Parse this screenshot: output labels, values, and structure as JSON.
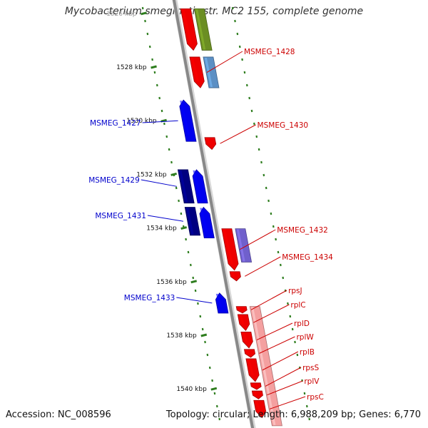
{
  "title": "Mycobacterium smegmatis str. MC2 155, complete genome",
  "footer": {
    "accession": "Accession: NC_008596",
    "topology": "Topology: circular; Length: 6,988,209 bp; Genes: 6,770"
  },
  "ticks": [
    {
      "label": "1526 kbp",
      "kbp": 1526
    },
    {
      "label": "1528 kbp",
      "kbp": 1528
    },
    {
      "label": "1530 kbp",
      "kbp": 1530
    },
    {
      "label": "1532 kbp",
      "kbp": 1532
    },
    {
      "label": "1534 kbp",
      "kbp": 1534
    },
    {
      "label": "1536 kbp",
      "kbp": 1536
    },
    {
      "label": "1538 kbp",
      "kbp": 1538
    },
    {
      "label": "1540 kbp",
      "kbp": 1540
    }
  ],
  "colors": {
    "forward_label": "#cc0000",
    "reverse_label": "#0000cc",
    "backbone": "#888888",
    "tick": "#2e7d1e"
  },
  "genes": [
    {
      "id": "MSMEG_1428",
      "label": "MSMEG_1428",
      "side": "forward",
      "lane": 1,
      "start": 1527.6,
      "end": 1528.8,
      "arrow": true,
      "color": "#ee0000",
      "labelled": true
    },
    {
      "id": "MSMEG_1428_cds",
      "label": "",
      "side": "forward",
      "lane": 2,
      "start": 1527.6,
      "end": 1528.8,
      "arrow": false,
      "color": "#5b8fc4",
      "labelled": false
    },
    {
      "id": "upper_gene",
      "label": "",
      "side": "forward",
      "lane": 1,
      "start": 1525.8,
      "end": 1527.4,
      "arrow": true,
      "color": "#ee0000",
      "labelled": false
    },
    {
      "id": "upper_cds",
      "label": "",
      "side": "forward",
      "lane": 2,
      "start": 1525.8,
      "end": 1527.4,
      "arrow": false,
      "color": "#6b8e23",
      "labelled": false
    },
    {
      "id": "MSMEG_1430",
      "label": "MSMEG_1430",
      "side": "forward",
      "lane": 1,
      "start": 1530.6,
      "end": 1531.1,
      "arrow": true,
      "color": "#ee0000",
      "labelled": true
    },
    {
      "id": "MSMEG_1432",
      "label": "MSMEG_1432",
      "side": "forward",
      "lane": 1,
      "start": 1534.0,
      "end": 1535.6,
      "arrow": true,
      "color": "#ee0000",
      "labelled": true
    },
    {
      "id": "MSMEG_1432_cds",
      "label": "",
      "side": "forward",
      "lane": 2,
      "start": 1534.0,
      "end": 1535.3,
      "arrow": false,
      "color": "#7060cc",
      "labelled": false
    },
    {
      "id": "MSMEG_1434",
      "label": "MSMEG_1434",
      "side": "forward",
      "lane": 1,
      "start": 1535.6,
      "end": 1536.0,
      "arrow": true,
      "color": "#ee0000",
      "labelled": true
    },
    {
      "id": "MSMEG_1427",
      "label": "MSMEG_1427",
      "side": "reverse",
      "lane": 2,
      "start": 1529.2,
      "end": 1530.8,
      "arrow": true,
      "color": "#0000ee",
      "labelled": true
    },
    {
      "id": "MSMEG_1429",
      "label": "MSMEG_1429",
      "side": "reverse",
      "lane": 1,
      "start": 1531.8,
      "end": 1533.1,
      "arrow": false,
      "color": "#000080",
      "labelled": true
    },
    {
      "id": "MSMEG_1429_b",
      "label": "",
      "side": "reverse",
      "lane": 2,
      "start": 1531.8,
      "end": 1533.1,
      "arrow": true,
      "color": "#0000ee",
      "labelled": false
    },
    {
      "id": "MSMEG_1431",
      "label": "MSMEG_1431",
      "side": "reverse",
      "lane": 1,
      "start": 1533.2,
      "end": 1534.3,
      "arrow": false,
      "color": "#000080",
      "labelled": true
    },
    {
      "id": "MSMEG_1431_b",
      "label": "",
      "side": "reverse",
      "lane": 2,
      "start": 1533.2,
      "end": 1534.4,
      "arrow": true,
      "color": "#0000ee",
      "labelled": false
    },
    {
      "id": "MSMEG_1433",
      "label": "MSMEG_1433",
      "side": "reverse",
      "lane": 2,
      "start": 1536.4,
      "end": 1537.2,
      "arrow": true,
      "color": "#0000ee",
      "labelled": true
    },
    {
      "id": "rpsJ",
      "label": "rpsJ",
      "side": "forward",
      "lane": 1,
      "start": 1536.9,
      "end": 1537.2,
      "arrow": true,
      "color": "#ee0000",
      "labelled": true
    },
    {
      "id": "rplC",
      "label": "rplC",
      "side": "forward",
      "lane": 1,
      "start": 1537.2,
      "end": 1537.85,
      "arrow": true,
      "color": "#ee0000",
      "labelled": true
    },
    {
      "id": "rplD",
      "label": "rplD",
      "side": "forward",
      "lane": 1,
      "start": 1537.85,
      "end": 1538.5,
      "arrow": true,
      "color": "#ee0000",
      "labelled": true
    },
    {
      "id": "rplW",
      "label": "rplW",
      "side": "forward",
      "lane": 1,
      "start": 1538.5,
      "end": 1538.85,
      "arrow": true,
      "color": "#ee0000",
      "labelled": true
    },
    {
      "id": "rplB",
      "label": "rplB",
      "side": "forward",
      "lane": 1,
      "start": 1538.85,
      "end": 1539.75,
      "arrow": true,
      "color": "#ee0000",
      "labelled": true
    },
    {
      "id": "rpsS",
      "label": "rpsS",
      "side": "forward",
      "lane": 1,
      "start": 1539.75,
      "end": 1540.05,
      "arrow": true,
      "color": "#ee0000",
      "labelled": true
    },
    {
      "id": "rplV",
      "label": "rplV",
      "side": "forward",
      "lane": 1,
      "start": 1540.05,
      "end": 1540.4,
      "arrow": true,
      "color": "#ee0000",
      "labelled": true
    },
    {
      "id": "rpsC",
      "label": "rpsC",
      "side": "forward",
      "lane": 1,
      "start": 1540.4,
      "end": 1541.1,
      "arrow": true,
      "color": "#ee0000",
      "labelled": true
    },
    {
      "id": "rpl_cds",
      "label": "",
      "side": "forward",
      "lane": 2,
      "start": 1536.9,
      "end": 1541.4,
      "arrow": false,
      "color": "#f4a0a0",
      "labelled": false
    }
  ]
}
